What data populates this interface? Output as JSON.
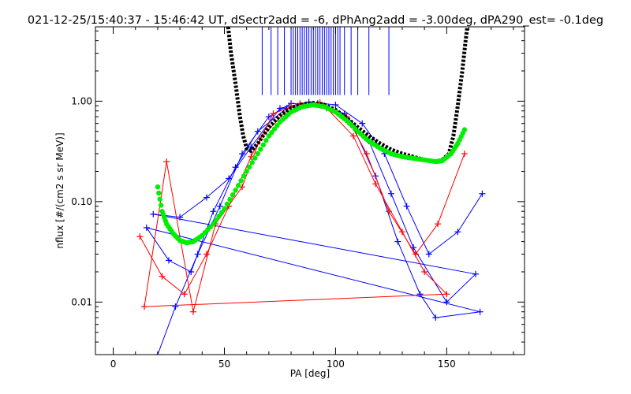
{
  "chart_data": {
    "type": "line",
    "title": "021-12-25/15:40:37 - 15:46:42 UT, dSectr2add = -6, dPhAng2add = -3.00deg, dPA290_est=  -0.1deg",
    "xlabel": "PA [deg]",
    "ylabel": "nflux [#/(cm2 s sr MeV)]",
    "xlim": [
      -8,
      185
    ],
    "ylim": [
      0.003,
      5.5
    ],
    "yscale": "log",
    "xticks": [
      0,
      50,
      100,
      150
    ],
    "xtick_labels": [
      "0",
      "50",
      "100",
      "150"
    ],
    "yticks": [
      0.01,
      0.1,
      1.0
    ],
    "ytick_labels": [
      "0.01",
      "0.10",
      "1.00"
    ],
    "grid": false,
    "legend": "none",
    "colors": {
      "data_blue": "#0000ff",
      "data_red": "#ff0000",
      "fit_green": "#00ee00",
      "fit_black": "#000000"
    },
    "series": [
      {
        "color": "blue",
        "style": "lines+plus",
        "points": [
          [
            20,
            0.003
          ],
          [
            28,
            0.009
          ],
          [
            38,
            0.03
          ],
          [
            48,
            0.09
          ],
          [
            58,
            0.3
          ],
          [
            70,
            0.7
          ],
          [
            80,
            0.95
          ],
          [
            95,
            0.9
          ],
          [
            108,
            0.55
          ],
          [
            118,
            0.18
          ],
          [
            128,
            0.04
          ],
          [
            138,
            0.012
          ],
          [
            145,
            0.007
          ],
          [
            165,
            0.008
          ],
          [
            15,
            0.055
          ],
          [
            25,
            0.026
          ],
          [
            35,
            0.02
          ],
          [
            45,
            0.08
          ],
          [
            55,
            0.22
          ],
          [
            65,
            0.5
          ],
          [
            78,
            0.85
          ],
          [
            92,
            0.95
          ],
          [
            104,
            0.75
          ],
          [
            115,
            0.4
          ],
          [
            125,
            0.12
          ],
          [
            135,
            0.035
          ],
          [
            150,
            0.01
          ],
          [
            163,
            0.019
          ],
          [
            18,
            0.075
          ],
          [
            30,
            0.07
          ],
          [
            42,
            0.11
          ],
          [
            52,
            0.17
          ],
          [
            62,
            0.35
          ],
          [
            75,
            0.85
          ],
          [
            88,
            0.98
          ],
          [
            100,
            0.92
          ],
          [
            112,
            0.6
          ],
          [
            122,
            0.3
          ],
          [
            132,
            0.09
          ],
          [
            142,
            0.03
          ],
          [
            155,
            0.05
          ],
          [
            166,
            0.12
          ]
        ]
      },
      {
        "color": "red",
        "style": "lines+plus",
        "points": [
          [
            12,
            0.045
          ],
          [
            22,
            0.018
          ],
          [
            32,
            0.012
          ],
          [
            42,
            0.03
          ],
          [
            52,
            0.09
          ],
          [
            62,
            0.28
          ],
          [
            72,
            0.75
          ],
          [
            84,
            0.95
          ],
          [
            96,
            0.85
          ],
          [
            108,
            0.45
          ],
          [
            118,
            0.15
          ],
          [
            130,
            0.05
          ],
          [
            140,
            0.02
          ],
          [
            150,
            0.012
          ],
          [
            14,
            0.009
          ],
          [
            24,
            0.25
          ],
          [
            36,
            0.008
          ],
          [
            46,
            0.06
          ],
          [
            58,
            0.14
          ],
          [
            66,
            0.42
          ],
          [
            80,
            0.9
          ],
          [
            93,
            0.97
          ],
          [
            105,
            0.7
          ],
          [
            114,
            0.3
          ],
          [
            124,
            0.08
          ],
          [
            136,
            0.03
          ],
          [
            146,
            0.06
          ],
          [
            158,
            0.3
          ]
        ]
      },
      {
        "name": "",
        "color": "green",
        "style": "dots",
        "points": [
          [
            20,
            0.14
          ],
          [
            22,
            0.08
          ],
          [
            24,
            0.06
          ],
          [
            27,
            0.048
          ],
          [
            30,
            0.041
          ],
          [
            33,
            0.039
          ],
          [
            36,
            0.04
          ],
          [
            40,
            0.046
          ],
          [
            45,
            0.06
          ],
          [
            50,
            0.085
          ],
          [
            55,
            0.13
          ],
          [
            60,
            0.2
          ],
          [
            65,
            0.3
          ],
          [
            70,
            0.45
          ],
          [
            75,
            0.62
          ],
          [
            80,
            0.78
          ],
          [
            85,
            0.88
          ],
          [
            90,
            0.92
          ],
          [
            95,
            0.88
          ],
          [
            100,
            0.78
          ],
          [
            105,
            0.64
          ],
          [
            110,
            0.5
          ],
          [
            115,
            0.4
          ],
          [
            120,
            0.34
          ],
          [
            125,
            0.3
          ],
          [
            130,
            0.28
          ],
          [
            135,
            0.27
          ],
          [
            140,
            0.26
          ],
          [
            145,
            0.25
          ],
          [
            148,
            0.255
          ],
          [
            152,
            0.3
          ],
          [
            155,
            0.38
          ],
          [
            158,
            0.52
          ]
        ]
      },
      {
        "name": "",
        "color": "black",
        "style": "dashed-thick",
        "points": [
          [
            51.5,
            6.0
          ],
          [
            53,
            3.0
          ],
          [
            55,
            1.5
          ],
          [
            57,
            0.7
          ],
          [
            58.5,
            0.45
          ],
          [
            60,
            0.34
          ],
          [
            62,
            0.32
          ],
          [
            65,
            0.38
          ],
          [
            70,
            0.55
          ],
          [
            75,
            0.72
          ],
          [
            80,
            0.85
          ],
          [
            85,
            0.93
          ],
          [
            90,
            0.96
          ],
          [
            95,
            0.92
          ],
          [
            100,
            0.82
          ],
          [
            105,
            0.68
          ],
          [
            110,
            0.55
          ],
          [
            115,
            0.45
          ],
          [
            120,
            0.38
          ],
          [
            125,
            0.33
          ],
          [
            130,
            0.3
          ],
          [
            135,
            0.28
          ],
          [
            140,
            0.26
          ],
          [
            145,
            0.25
          ],
          [
            148,
            0.26
          ],
          [
            151,
            0.3
          ],
          [
            153,
            0.45
          ],
          [
            155,
            0.9
          ],
          [
            157,
            2.0
          ],
          [
            158.5,
            4.0
          ],
          [
            159.5,
            6.0
          ]
        ]
      }
    ],
    "vertical_ticks": {
      "color": "blue",
      "y_top": 5.5,
      "y_bottom": 1.15,
      "x": [
        67,
        71,
        74,
        77,
        80,
        81,
        82,
        83,
        84,
        85,
        86,
        87,
        88,
        89,
        90,
        91,
        92,
        93,
        94,
        95,
        96,
        97,
        98,
        99,
        100,
        101,
        102,
        104,
        107,
        110,
        115,
        124
      ]
    }
  }
}
